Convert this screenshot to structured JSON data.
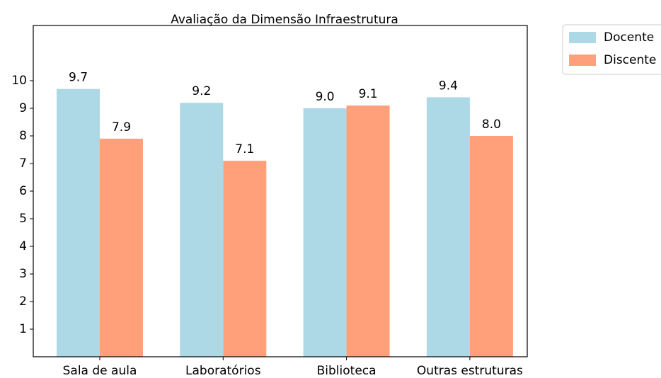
{
  "chart_data": {
    "type": "bar",
    "title": "Avaliação da Dimensão Infraestrutura",
    "categories": [
      "Sala de aula",
      "Laboratórios",
      "Biblioteca",
      "Outras estruturas"
    ],
    "series": [
      {
        "name": "Docente",
        "color": "#add8e6",
        "values": [
          9.7,
          9.2,
          9.0,
          9.4
        ],
        "value_labels": [
          "9.7",
          "9.2",
          "9.0",
          "9.4"
        ]
      },
      {
        "name": "Discente",
        "color": "#ffa07a",
        "values": [
          7.9,
          7.1,
          9.1,
          8.0
        ],
        "value_labels": [
          "7.9",
          "7.1",
          "9.1",
          "8.0"
        ]
      }
    ],
    "ylim": [
      0,
      12
    ],
    "yticks": [
      1,
      2,
      3,
      4,
      5,
      6,
      7,
      8,
      9,
      10
    ],
    "legend": "outside upper right"
  }
}
